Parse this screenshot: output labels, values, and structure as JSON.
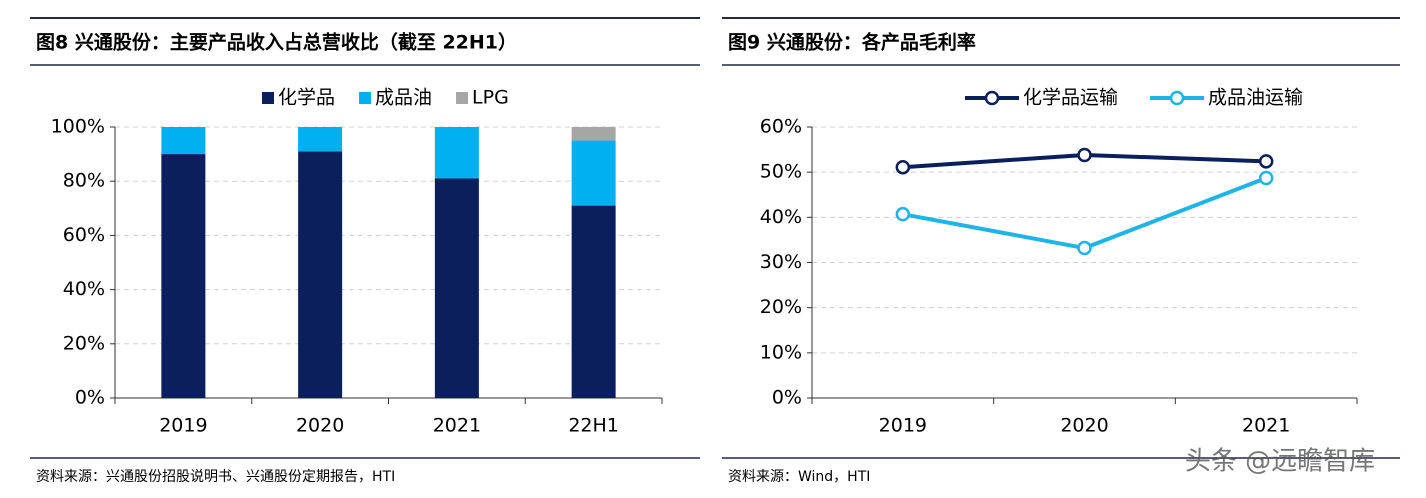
{
  "chart_data": [
    {
      "type": "stacked_bar",
      "title": "图8 兴通股份：主要产品收入占总营收比（截至 22H1）",
      "categories": [
        "2019",
        "2020",
        "2021",
        "22H1"
      ],
      "series": [
        {
          "name": "化学品",
          "color": "#0b1f5c",
          "values": [
            90,
            91,
            81,
            71
          ]
        },
        {
          "name": "成品油",
          "color": "#00b0f0",
          "values": [
            10,
            9,
            19,
            24
          ]
        },
        {
          "name": "LPG",
          "color": "#a6a6a6",
          "values": [
            0,
            0,
            0,
            5
          ]
        }
      ],
      "ylim": [
        0,
        100
      ],
      "yticks": [
        {
          "value": 0,
          "label": "0%"
        },
        {
          "value": 20,
          "label": "20%"
        },
        {
          "value": 40,
          "label": "40%"
        },
        {
          "value": 60,
          "label": "60%"
        },
        {
          "value": 80,
          "label": "80%"
        },
        {
          "value": 100,
          "label": "100%"
        }
      ],
      "grid": true,
      "legend": "top",
      "source": "资料来源：兴通股份招股说明书、兴通股份定期报告，HTI"
    },
    {
      "type": "line",
      "title": "图9 兴通股份：各产品毛利率",
      "categories": [
        "2019",
        "2020",
        "2021"
      ],
      "series": [
        {
          "name": "化学品运输",
          "color": "#0b1f5c",
          "values": [
            51.1,
            53.8,
            52.4
          ]
        },
        {
          "name": "成品油运输",
          "color": "#1fb4e8",
          "values": [
            40.7,
            33.2,
            48.7
          ]
        }
      ],
      "ylim": [
        0,
        60
      ],
      "yticks": [
        {
          "value": 0,
          "label": "0%"
        },
        {
          "value": 10,
          "label": "10%"
        },
        {
          "value": 20,
          "label": "20%"
        },
        {
          "value": 30,
          "label": "30%"
        },
        {
          "value": 40,
          "label": "40%"
        },
        {
          "value": 50,
          "label": "50%"
        },
        {
          "value": 60,
          "label": "60%"
        }
      ],
      "grid": true,
      "legend": "top",
      "source": "资料来源：Wind，HTI"
    }
  ],
  "watermark": "头条 @远瞻智库"
}
